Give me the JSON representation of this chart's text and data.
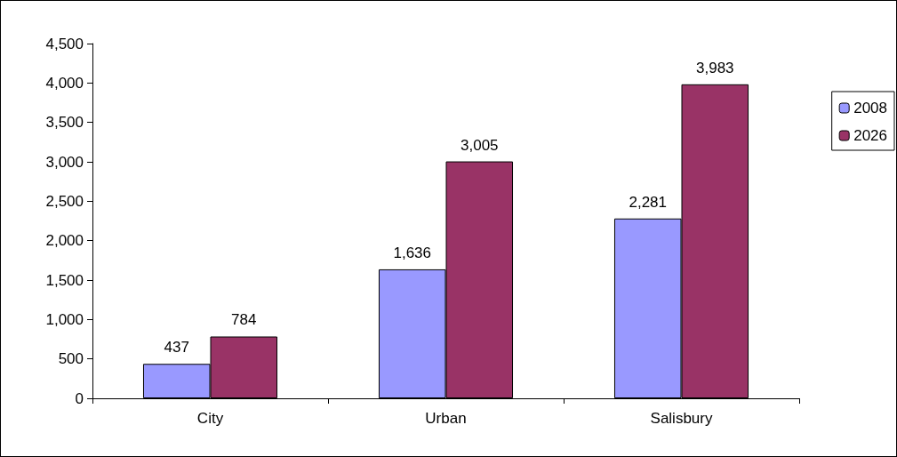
{
  "chart_data": {
    "type": "bar",
    "categories": [
      "City",
      "Urban",
      "Salisbury"
    ],
    "series": [
      {
        "name": "2008",
        "color": "#9999ff",
        "values": [
          437,
          1636,
          2281
        ],
        "value_labels": [
          "437",
          "1,636",
          "2,281"
        ]
      },
      {
        "name": "2026",
        "color": "#993366",
        "values": [
          784,
          3005,
          3983
        ],
        "value_labels": [
          "784",
          "3,005",
          "3,983"
        ]
      }
    ],
    "ylim": [
      0,
      4500
    ],
    "yticks": [
      0,
      500,
      {
        "value": 1000,
        "label": "1,000"
      },
      {
        "value": 1500,
        "label": "1,500"
      },
      {
        "value": 2000,
        "label": "2,000"
      },
      {
        "value": 2500,
        "label": "2,500"
      },
      {
        "value": 3000,
        "label": "3,000"
      },
      {
        "value": 3500,
        "label": "3,500"
      },
      {
        "value": 4000,
        "label": "4,000"
      },
      {
        "value": 4500,
        "label": "4,500"
      }
    ],
    "grid": false,
    "legend": "top right"
  }
}
